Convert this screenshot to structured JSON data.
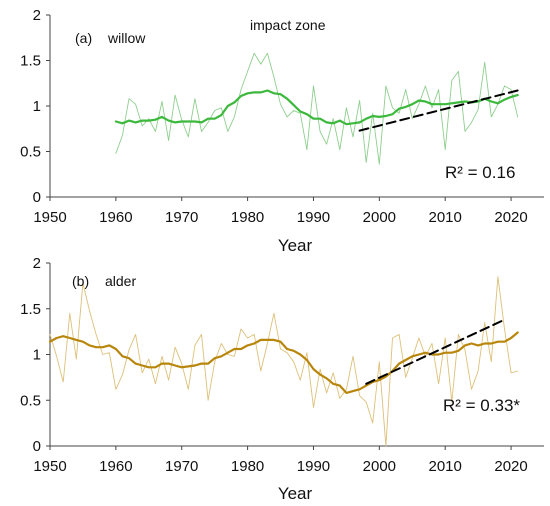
{
  "chart_data": [
    {
      "type": "line",
      "panel_label": "(a)",
      "species": "willow",
      "annotation": "impact zone",
      "r2_text": "R² = 0.16",
      "xlabel": "Year",
      "ylabel": "",
      "xlim": [
        1950,
        2025
      ],
      "ylim": [
        0,
        2
      ],
      "xticks": [
        1950,
        1960,
        1970,
        1980,
        1990,
        2000,
        2010,
        2020
      ],
      "yticks": [
        0,
        0.5,
        1,
        1.5,
        2
      ],
      "ytick_labels": [
        "0",
        "0.5",
        "1",
        "1.5",
        "2"
      ],
      "colors": {
        "annual": "#8fce8f",
        "smooth": "#3cb83c",
        "trend": "#000000"
      },
      "series": [
        {
          "role": "annual",
          "x": [
            1960,
            1961,
            1962,
            1963,
            1964,
            1965,
            1966,
            1967,
            1968,
            1969,
            1970,
            1971,
            1972,
            1973,
            1974,
            1975,
            1976,
            1977,
            1978,
            1979,
            1980,
            1981,
            1982,
            1983,
            1984,
            1985,
            1986,
            1987,
            1988,
            1989,
            1990,
            1991,
            1992,
            1993,
            1994,
            1995,
            1996,
            1997,
            1998,
            1999,
            2000,
            2001,
            2002,
            2003,
            2004,
            2005,
            2006,
            2007,
            2008,
            2009,
            2010,
            2011,
            2012,
            2013,
            2014,
            2015,
            2016,
            2017,
            2018,
            2019,
            2020,
            2021
          ],
          "y": [
            0.48,
            0.68,
            1.08,
            1.02,
            0.78,
            0.86,
            0.72,
            1.05,
            0.62,
            1.12,
            0.85,
            0.66,
            1.08,
            0.72,
            0.82,
            0.95,
            0.98,
            0.72,
            0.88,
            1.18,
            1.38,
            1.58,
            1.46,
            1.58,
            1.32,
            1.02,
            0.88,
            0.95,
            0.92,
            0.52,
            1.22,
            0.72,
            0.58,
            0.86,
            0.52,
            0.98,
            0.66,
            1.06,
            0.38,
            0.92,
            0.36,
            1.22,
            0.98,
            0.92,
            1.18,
            0.86,
            1.02,
            1.22,
            0.98,
            1.18,
            0.52,
            1.28,
            1.38,
            0.72,
            0.82,
            0.96,
            1.48,
            0.88,
            1.02,
            1.22,
            1.18,
            0.88
          ]
        },
        {
          "role": "smooth",
          "x": [
            1960,
            1961,
            1962,
            1963,
            1964,
            1965,
            1966,
            1967,
            1968,
            1969,
            1970,
            1971,
            1972,
            1973,
            1974,
            1975,
            1976,
            1977,
            1978,
            1979,
            1980,
            1981,
            1982,
            1983,
            1984,
            1985,
            1986,
            1987,
            1988,
            1989,
            1990,
            1991,
            1992,
            1993,
            1994,
            1995,
            1996,
            1997,
            1998,
            1999,
            2000,
            2001,
            2002,
            2003,
            2004,
            2005,
            2006,
            2007,
            2008,
            2009,
            2010,
            2011,
            2012,
            2013,
            2014,
            2015,
            2016,
            2017,
            2018,
            2019,
            2020,
            2021
          ],
          "y": [
            0.83,
            0.81,
            0.84,
            0.82,
            0.84,
            0.84,
            0.85,
            0.88,
            0.84,
            0.82,
            0.83,
            0.83,
            0.83,
            0.82,
            0.86,
            0.86,
            0.9,
            1.0,
            1.04,
            1.11,
            1.14,
            1.15,
            1.15,
            1.17,
            1.14,
            1.13,
            1.08,
            1.01,
            0.94,
            0.91,
            0.86,
            0.86,
            0.82,
            0.81,
            0.84,
            0.8,
            0.81,
            0.82,
            0.86,
            0.89,
            0.88,
            0.89,
            0.91,
            0.97,
            0.99,
            1.02,
            1.06,
            1.05,
            1.02,
            1.02,
            1.02,
            1.03,
            1.04,
            1.05,
            1.04,
            1.05,
            1.08,
            1.05,
            1.03,
            1.07,
            1.1,
            1.12
          ]
        },
        {
          "role": "trend",
          "x": [
            1997,
            2021
          ],
          "y": [
            0.73,
            1.17
          ]
        }
      ]
    },
    {
      "type": "line",
      "panel_label": "(b)",
      "species": "alder",
      "annotation": "",
      "r2_text": "R² = 0.33*",
      "xlabel": "Year",
      "ylabel": "",
      "xlim": [
        1950,
        2025
      ],
      "ylim": [
        0,
        2
      ],
      "xticks": [
        1950,
        1960,
        1970,
        1980,
        1990,
        2000,
        2010,
        2020
      ],
      "yticks": [
        0,
        0.5,
        1,
        1.5,
        2
      ],
      "ytick_labels": [
        "0",
        "0.5",
        "1",
        "1.5",
        "2"
      ],
      "colors": {
        "annual": "#ddc07a",
        "smooth": "#b8860b",
        "trend": "#000000"
      },
      "series": [
        {
          "role": "annual",
          "x": [
            1950,
            1951,
            1952,
            1953,
            1954,
            1955,
            1956,
            1957,
            1958,
            1959,
            1960,
            1961,
            1962,
            1963,
            1964,
            1965,
            1966,
            1967,
            1968,
            1969,
            1970,
            1971,
            1972,
            1973,
            1974,
            1975,
            1976,
            1977,
            1978,
            1979,
            1980,
            1981,
            1982,
            1983,
            1984,
            1985,
            1986,
            1987,
            1988,
            1989,
            1990,
            1991,
            1992,
            1993,
            1994,
            1995,
            1996,
            1997,
            1998,
            1999,
            2000,
            2001,
            2002,
            2003,
            2004,
            2005,
            2006,
            2007,
            2008,
            2009,
            2010,
            2011,
            2012,
            2013,
            2014,
            2015,
            2016,
            2017,
            2018,
            2019,
            2020,
            2021
          ],
          "y": [
            1.22,
            0.98,
            0.7,
            1.45,
            0.95,
            1.78,
            1.48,
            1.22,
            1.0,
            1.02,
            0.62,
            0.78,
            1.05,
            1.22,
            0.8,
            0.95,
            0.68,
            0.98,
            0.72,
            1.08,
            0.9,
            0.62,
            1.1,
            1.22,
            0.5,
            0.92,
            1.12,
            1.0,
            0.98,
            1.28,
            1.18,
            1.22,
            0.82,
            1.12,
            1.45,
            1.06,
            1.02,
            0.92,
            0.72,
            1.02,
            0.42,
            0.84,
            0.58,
            0.8,
            0.52,
            0.62,
            0.98,
            0.55,
            0.48,
            0.25,
            0.92,
            0.0,
            1.18,
            1.22,
            0.75,
            0.96,
            1.18,
            0.98,
            1.12,
            0.68,
            1.18,
            0.48,
            1.22,
            1.05,
            0.62,
            0.82,
            1.35,
            0.92,
            1.85,
            1.28,
            0.8,
            0.82
          ]
        },
        {
          "role": "smooth",
          "x": [
            1950,
            1951,
            1952,
            1953,
            1954,
            1955,
            1956,
            1957,
            1958,
            1959,
            1960,
            1961,
            1962,
            1963,
            1964,
            1965,
            1966,
            1967,
            1968,
            1969,
            1970,
            1971,
            1972,
            1973,
            1974,
            1975,
            1976,
            1977,
            1978,
            1979,
            1980,
            1981,
            1982,
            1983,
            1984,
            1985,
            1986,
            1987,
            1988,
            1989,
            1990,
            1991,
            1992,
            1993,
            1994,
            1995,
            1996,
            1997,
            1998,
            1999,
            2000,
            2001,
            2002,
            2003,
            2004,
            2005,
            2006,
            2007,
            2008,
            2009,
            2010,
            2011,
            2012,
            2013,
            2014,
            2015,
            2016,
            2017,
            2018,
            2019,
            2020,
            2021
          ],
          "y": [
            1.14,
            1.18,
            1.2,
            1.18,
            1.16,
            1.14,
            1.1,
            1.08,
            1.08,
            1.1,
            1.06,
            0.98,
            0.96,
            0.9,
            0.88,
            0.86,
            0.86,
            0.9,
            0.9,
            0.88,
            0.86,
            0.87,
            0.88,
            0.9,
            0.9,
            0.96,
            0.98,
            1.02,
            1.06,
            1.06,
            1.1,
            1.12,
            1.16,
            1.16,
            1.16,
            1.14,
            1.06,
            1.04,
            1.0,
            0.94,
            0.84,
            0.78,
            0.74,
            0.68,
            0.66,
            0.58,
            0.6,
            0.62,
            0.66,
            0.7,
            0.72,
            0.76,
            0.82,
            0.9,
            0.94,
            0.98,
            1.0,
            1.02,
            1.0,
            1.0,
            1.02,
            1.02,
            1.04,
            1.1,
            1.12,
            1.1,
            1.12,
            1.12,
            1.14,
            1.14,
            1.18,
            1.24
          ]
        },
        {
          "role": "trend",
          "x": [
            1998,
            2019
          ],
          "y": [
            0.68,
            1.38
          ]
        }
      ]
    }
  ]
}
